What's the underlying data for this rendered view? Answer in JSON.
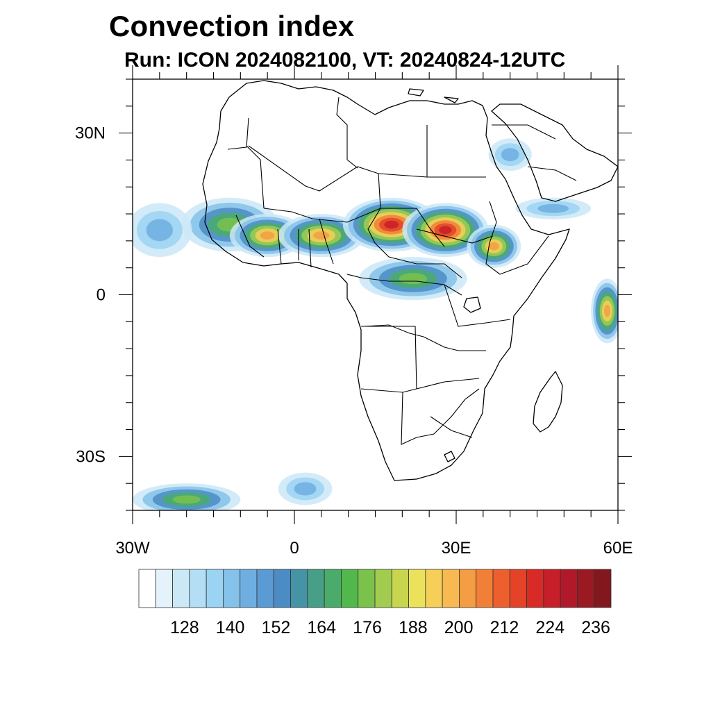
{
  "title": "Convection index",
  "subtitle": "Run: ICON 2024082100,  VT: 20240824-12UTC",
  "axes": {
    "lon_range": [
      -30,
      60
    ],
    "lat_range": [
      -40,
      40
    ],
    "x_ticks": [
      {
        "value": -30,
        "label": "30W"
      },
      {
        "value": 0,
        "label": "0"
      },
      {
        "value": 30,
        "label": "30E"
      },
      {
        "value": 60,
        "label": "60E"
      }
    ],
    "y_ticks": [
      {
        "value": 30,
        "label": "30N"
      },
      {
        "value": 0,
        "label": "0"
      },
      {
        "value": -30,
        "label": "30S"
      }
    ]
  },
  "colorbar": {
    "colors": [
      "#ffffff",
      "#e4f3fb",
      "#cbe8f7",
      "#b3def5",
      "#9bd3f2",
      "#84c2ea",
      "#6eaee0",
      "#5a9bd4",
      "#4b8cc4",
      "#4493a6",
      "#479f87",
      "#4aab6a",
      "#53b84b",
      "#7ac24c",
      "#a2cc4f",
      "#c8d64f",
      "#ebe15b",
      "#f6cf59",
      "#f7b950",
      "#f59d43",
      "#f27f37",
      "#ed5f2d",
      "#e44328",
      "#d82a27",
      "#c61f2a",
      "#b1192a",
      "#9a1a23",
      "#82171d"
    ],
    "labels": [
      {
        "index": 3,
        "text": "128"
      },
      {
        "index": 6,
        "text": "140"
      },
      {
        "index": 9,
        "text": "152"
      },
      {
        "index": 12,
        "text": "164"
      },
      {
        "index": 15,
        "text": "176"
      },
      {
        "index": 18,
        "text": "188"
      },
      {
        "index": 21,
        "text": "200"
      },
      {
        "index": 24,
        "text": "212"
      },
      {
        "index": 27,
        "text": "224"
      },
      {
        "index": 30,
        "text": "236"
      }
    ]
  },
  "convection_zones": [
    {
      "lon": -12,
      "lat": 13,
      "level": 2,
      "rx": 9,
      "ry": 5
    },
    {
      "lon": -5,
      "lat": 11,
      "level": 3,
      "rx": 7,
      "ry": 4
    },
    {
      "lon": 5,
      "lat": 11,
      "level": 3,
      "rx": 8,
      "ry": 4
    },
    {
      "lon": 18,
      "lat": 13,
      "level": 4,
      "rx": 9,
      "ry": 5
    },
    {
      "lon": 28,
      "lat": 12,
      "level": 4,
      "rx": 8,
      "ry": 5
    },
    {
      "lon": 37,
      "lat": 9,
      "level": 3,
      "rx": 5,
      "ry": 4
    },
    {
      "lon": 22,
      "lat": 3,
      "level": 2,
      "rx": 10,
      "ry": 4
    },
    {
      "lon": 58,
      "lat": -3,
      "level": 3,
      "rx": 3,
      "ry": 6
    },
    {
      "lon": -25,
      "lat": 12,
      "level": 1,
      "rx": 6,
      "ry": 5
    },
    {
      "lon": -20,
      "lat": -38,
      "level": 2,
      "rx": 10,
      "ry": 3
    },
    {
      "lon": 2,
      "lat": -36,
      "level": 1,
      "rx": 5,
      "ry": 3
    },
    {
      "lon": 48,
      "lat": 16,
      "level": 1,
      "rx": 7,
      "ry": 2
    },
    {
      "lon": 40,
      "lat": 26,
      "level": 1,
      "rx": 4,
      "ry": 3
    }
  ]
}
